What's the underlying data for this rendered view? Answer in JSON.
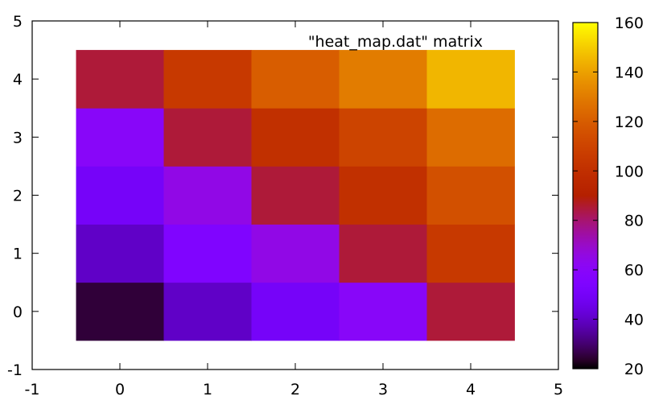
{
  "chart_data": {
    "type": "heatmap",
    "title": "\"heat_map.dat\" matrix",
    "x": [
      0,
      1,
      2,
      3,
      4
    ],
    "y": [
      0,
      1,
      2,
      3,
      4
    ],
    "z": [
      [
        25,
        40,
        50,
        60,
        85
      ],
      [
        40,
        55,
        65,
        85,
        105
      ],
      [
        50,
        65,
        85,
        100,
        115
      ],
      [
        60,
        85,
        100,
        110,
        125
      ],
      [
        85,
        105,
        120,
        130,
        145
      ]
    ],
    "xlim": [
      -1,
      5
    ],
    "ylim": [
      -1,
      5
    ],
    "xticks": [
      "-1",
      "0",
      "1",
      "2",
      "3",
      "4",
      "5"
    ],
    "yticks": [
      "-1",
      "0",
      "1",
      "2",
      "3",
      "4",
      "5"
    ],
    "colorbar": {
      "range": [
        20,
        160
      ],
      "ticks": [
        "20",
        "40",
        "60",
        "80",
        "100",
        "120",
        "140",
        "160"
      ],
      "palette": "gnuplot"
    },
    "grid": false,
    "legend": "top-right"
  }
}
